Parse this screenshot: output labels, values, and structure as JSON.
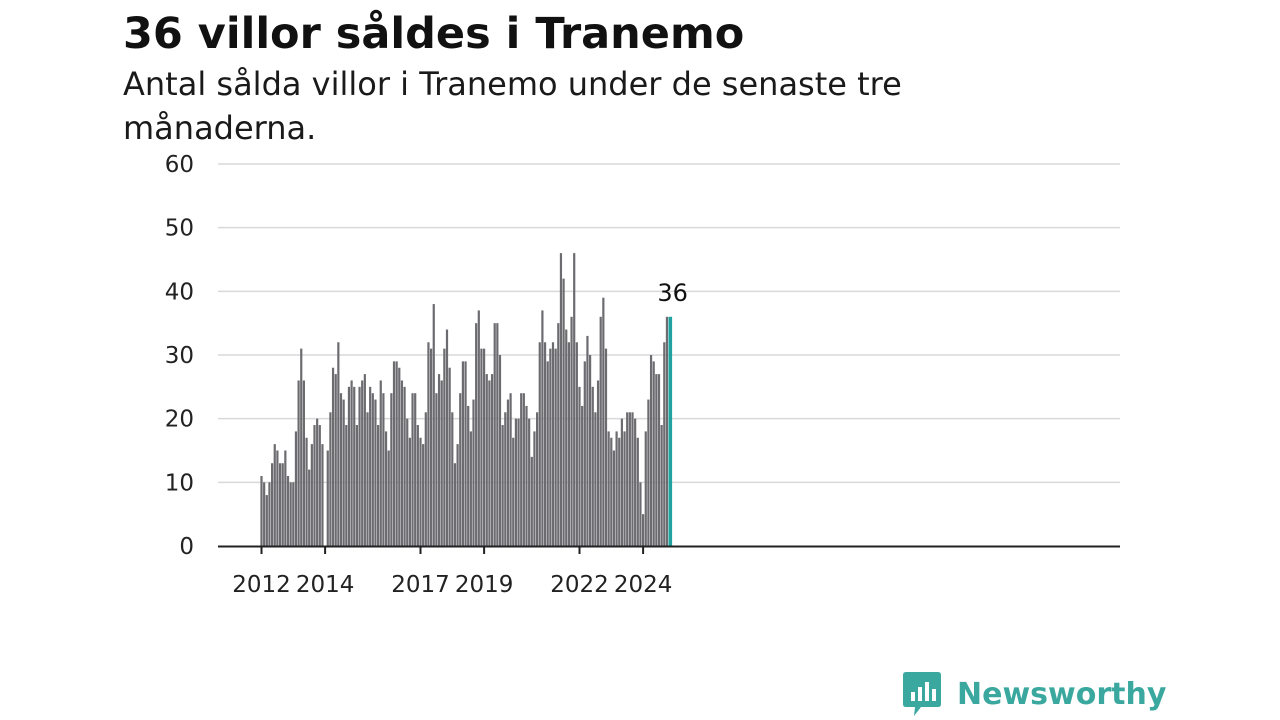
{
  "title": "36 villor såldes i Tranemo",
  "subtitle": "Antal sålda villor i Tranemo under de senaste tre månaderna.",
  "brand": {
    "name": "Newsworthy",
    "color": "#3aa89f"
  },
  "colors": {
    "bar": "#6b6b70",
    "highlight": "#1fa3a0",
    "grid": "#d9d9d9",
    "axis": "#222222"
  },
  "chart_data": {
    "type": "bar",
    "title": "36 villor såldes i Tranemo",
    "subtitle": "Antal sålda villor i Tranemo under de senaste tre månaderna.",
    "xlabel": "",
    "ylabel": "",
    "ylim": [
      0,
      60
    ],
    "yticks": [
      0,
      10,
      20,
      30,
      40,
      50,
      60
    ],
    "xtick_labels": [
      "2012",
      "2014",
      "2017",
      "2019",
      "2022",
      "2024"
    ],
    "grid": true,
    "legend": "none",
    "first_period": "2012-01",
    "last_period": "2024-12",
    "values": [
      11,
      10,
      8,
      10,
      13,
      16,
      15,
      13,
      13,
      15,
      11,
      10,
      10,
      18,
      26,
      31,
      26,
      17,
      12,
      16,
      19,
      20,
      19,
      16,
      null,
      15,
      21,
      28,
      27,
      32,
      24,
      23,
      19,
      25,
      26,
      25,
      19,
      25,
      26,
      27,
      21,
      25,
      24,
      23,
      19,
      26,
      24,
      18,
      15,
      24,
      29,
      29,
      28,
      26,
      25,
      20,
      17,
      24,
      24,
      19,
      17,
      16,
      21,
      32,
      31,
      38,
      24,
      27,
      26,
      31,
      34,
      28,
      21,
      13,
      16,
      24,
      29,
      29,
      22,
      18,
      23,
      35,
      37,
      31,
      31,
      27,
      26,
      27,
      35,
      35,
      30,
      19,
      21,
      23,
      24,
      17,
      20,
      20,
      24,
      24,
      22,
      20,
      14,
      18,
      21,
      32,
      37,
      32,
      29,
      31,
      32,
      31,
      35,
      46,
      42,
      34,
      32,
      36,
      46,
      32,
      25,
      22,
      29,
      33,
      30,
      25,
      21,
      26,
      36,
      39,
      31,
      18,
      17,
      15,
      18,
      17,
      20,
      18,
      21,
      21,
      21,
      20,
      17,
      10,
      5,
      18,
      23,
      30,
      29,
      27,
      27,
      19,
      32,
      36,
      36
    ],
    "highlight_last": true,
    "annotation": "36"
  }
}
